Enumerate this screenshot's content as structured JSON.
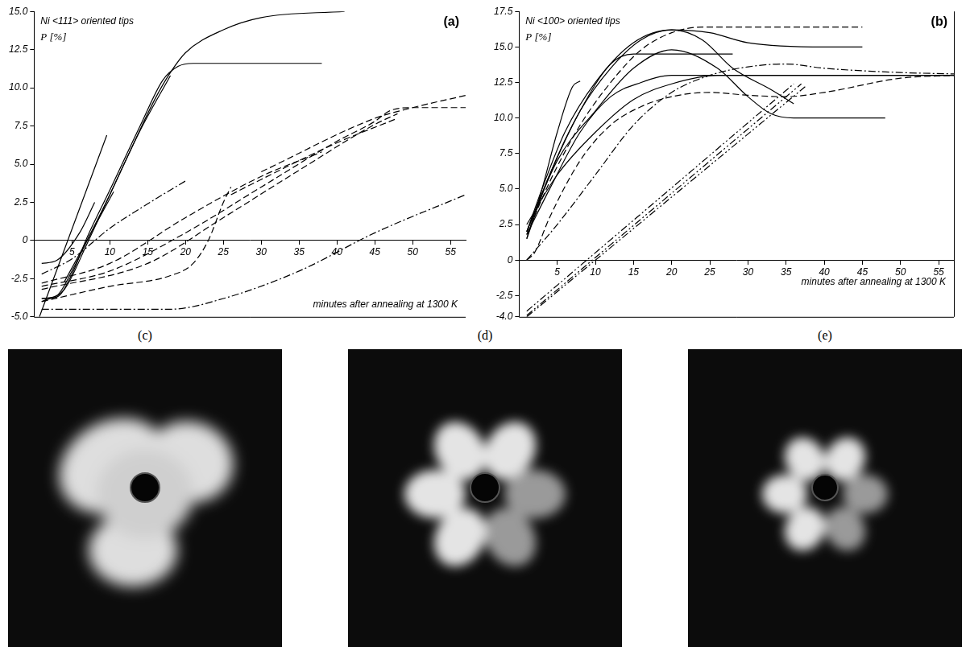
{
  "chart_data": [
    {
      "type": "line",
      "title": "Ni <111> oriented tips",
      "label": "(a)",
      "x_label": "minutes after annealing at 1300 K",
      "y_label": "P [%]",
      "xlim": [
        0,
        57
      ],
      "xticks": [
        5,
        10,
        15,
        20,
        25,
        30,
        35,
        40,
        45,
        50,
        55
      ],
      "ylim": [
        -5,
        15
      ],
      "yticks": [
        {
          "value": -5,
          "label": "-5.0"
        },
        -2.5,
        0,
        2.5,
        {
          "value": 5,
          "label": "5.0"
        },
        7.5,
        {
          "value": 10,
          "label": "10.0"
        },
        12.5,
        {
          "value": 15,
          "label": "15.0"
        }
      ],
      "grid": false,
      "series": [
        {
          "color": "#000000",
          "line_style": "solid",
          "values": [
            [
              1,
              -3.8
            ],
            [
              3,
              -3.6
            ],
            [
              5,
              -2
            ],
            [
              7,
              0
            ],
            [
              10,
              3
            ],
            [
              13,
              6.2
            ],
            [
              16,
              9.3
            ],
            [
              18,
              11
            ],
            [
              20,
              12.3
            ],
            [
              25,
              13.8
            ],
            [
              30,
              14.6
            ],
            [
              41,
              15
            ]
          ]
        },
        {
          "color": "#000000",
          "line_style": "solid",
          "values": [
            [
              1,
              -3.8
            ],
            [
              3,
              -3.7
            ],
            [
              5,
              -2.2
            ],
            [
              7,
              0.2
            ],
            [
              10,
              3.3
            ],
            [
              14,
              7.5
            ],
            [
              17,
              10.5
            ],
            [
              19,
              11.4
            ],
            [
              21,
              11.6
            ],
            [
              38,
              11.6
            ]
          ]
        },
        {
          "color": "#000000",
          "line_style": "solid",
          "values": [
            [
              1,
              -4
            ],
            [
              4,
              -3.2
            ],
            [
              7,
              -0.2
            ],
            [
              10,
              3
            ],
            [
              14,
              7.2
            ],
            [
              18,
              10.8
            ]
          ]
        },
        {
          "color": "#000000",
          "line_style": "solid",
          "values": [
            [
              0.7,
              -5
            ],
            [
              9.6,
              6.9
            ]
          ]
        },
        {
          "color": "#000000",
          "line_style": "solid",
          "values": [
            [
              4,
              -2.7
            ],
            [
              10.5,
              3.2
            ]
          ]
        },
        {
          "color": "#000000",
          "line_style": "solid",
          "values": [
            [
              1,
              -1.5
            ],
            [
              3,
              -1.3
            ],
            [
              6,
              0.5
            ],
            [
              8,
              2.5
            ]
          ]
        },
        {
          "color": "#000000",
          "line_style": "dashdot",
          "values": [
            [
              1,
              -2.2
            ],
            [
              5,
              -1.2
            ],
            [
              10,
              0.8
            ],
            [
              15,
              2.4
            ],
            [
              20,
              3.9
            ]
          ]
        },
        {
          "color": "#000000",
          "line_style": "dashed",
          "values": [
            [
              1,
              -2.8
            ],
            [
              10,
              -1.5
            ],
            [
              20,
              1.5
            ],
            [
              30,
              4.2
            ],
            [
              38,
              5.8
            ]
          ]
        },
        {
          "color": "#000000",
          "line_style": "dashed",
          "values": [
            [
              1,
              -3
            ],
            [
              10,
              -2
            ],
            [
              20,
              0.5
            ],
            [
              30,
              3.5
            ],
            [
              40,
              6.5
            ],
            [
              45,
              7.8
            ],
            [
              47,
              8.5
            ],
            [
              50,
              8.7
            ],
            [
              57,
              8.7
            ]
          ]
        },
        {
          "color": "#000000",
          "line_style": "dashed",
          "values": [
            [
              1,
              -3.2
            ],
            [
              15,
              -1.5
            ],
            [
              25,
              1.5
            ],
            [
              35,
              4.6
            ],
            [
              45,
              7.6
            ],
            [
              48,
              8.3
            ]
          ]
        },
        {
          "color": "#000000",
          "line_style": "dashed",
          "values": [
            [
              1,
              -4
            ],
            [
              10,
              -3
            ],
            [
              18,
              -2.3
            ],
            [
              21,
              -1.5
            ],
            [
              23,
              0
            ],
            [
              25,
              2.5
            ],
            [
              26,
              3.5
            ]
          ]
        },
        {
          "color": "#000000",
          "line_style": "dashed",
          "values": [
            [
              26,
              3
            ],
            [
              30,
              4
            ],
            [
              40,
              6.4
            ],
            [
              48,
              8
            ]
          ]
        },
        {
          "color": "#000000",
          "line_style": "dashed",
          "values": [
            [
              30,
              4.5
            ],
            [
              45,
              8
            ],
            [
              50,
              8.7
            ],
            [
              57,
              9.5
            ]
          ]
        },
        {
          "color": "#000000",
          "line_style": "dashdot",
          "values": [
            [
              1,
              -4.5
            ],
            [
              18,
              -4.5
            ],
            [
              25,
              -3.8
            ],
            [
              35,
              -2
            ],
            [
              45,
              0.5
            ],
            [
              57,
              3
            ]
          ]
        }
      ]
    },
    {
      "type": "line",
      "title": "Ni <100> oriented tips",
      "label": "(b)",
      "x_label": "minutes after annealing at 1300 K",
      "y_label": "P [%]",
      "xlim": [
        0,
        57
      ],
      "xticks": [
        5,
        10,
        15,
        20,
        25,
        30,
        35,
        40,
        45,
        50,
        55
      ],
      "ylim": [
        -4,
        17.5
      ],
      "yticks": [
        {
          "value": -4,
          "label": "-4.0"
        },
        -2.5,
        0,
        2.5,
        {
          "value": 5,
          "label": "5.0"
        },
        7.5,
        {
          "value": 10,
          "label": "10.0"
        },
        12.5,
        {
          "value": 15,
          "label": "15.0"
        },
        17.5
      ],
      "grid": false,
      "series": [
        {
          "color": "#000000",
          "line_style": "solid",
          "values": [
            [
              1,
              1.5
            ],
            [
              3,
              5
            ],
            [
              5,
              9
            ],
            [
              7,
              12.2
            ],
            [
              8,
              12.6
            ]
          ]
        },
        {
          "color": "#000000",
          "line_style": "solid",
          "values": [
            [
              1,
              2
            ],
            [
              3,
              5
            ],
            [
              6,
              9
            ],
            [
              10,
              12.5
            ],
            [
              15,
              15.3
            ],
            [
              20,
              16.2
            ],
            [
              24,
              15.5
            ],
            [
              28,
              13.5
            ],
            [
              33,
              12
            ],
            [
              36,
              11
            ]
          ]
        },
        {
          "color": "#000000",
          "line_style": "solid",
          "values": [
            [
              1,
              1.5
            ],
            [
              4,
              6
            ],
            [
              8,
              10.5
            ],
            [
              12,
              13.5
            ],
            [
              16,
              15.5
            ],
            [
              20,
              16.2
            ],
            [
              25,
              16
            ],
            [
              30,
              15.3
            ],
            [
              40,
              15
            ],
            [
              45,
              15
            ]
          ]
        },
        {
          "color": "#000000",
          "line_style": "solid",
          "values": [
            [
              1,
              2
            ],
            [
              5,
              7
            ],
            [
              10,
              10.5
            ],
            [
              15,
              13.5
            ],
            [
              20,
              14.8
            ],
            [
              26,
              13.5
            ],
            [
              30,
              11.5
            ],
            [
              33,
              10.3
            ],
            [
              36,
              10
            ],
            [
              48,
              10
            ]
          ]
        },
        {
          "color": "#000000",
          "line_style": "solid",
          "values": [
            [
              1,
              2
            ],
            [
              4,
              6
            ],
            [
              8,
              10.5
            ],
            [
              12,
              13.8
            ],
            [
              15,
              14.5
            ],
            [
              28,
              14.5
            ]
          ]
        },
        {
          "color": "#000000",
          "line_style": "solid",
          "values": [
            [
              1,
              1.8
            ],
            [
              4,
              5
            ],
            [
              8,
              9
            ],
            [
              12,
              11.5
            ],
            [
              16,
              12.5
            ],
            [
              20,
              13
            ],
            [
              30,
              13
            ],
            [
              57,
              13
            ]
          ]
        },
        {
          "color": "#000000",
          "line_style": "solid",
          "values": [
            [
              1,
              2.5
            ],
            [
              5,
              6
            ],
            [
              10,
              9
            ],
            [
              15,
              11.3
            ],
            [
              20,
              12.4
            ],
            [
              26,
              13
            ],
            [
              57,
              13
            ]
          ]
        },
        {
          "color": "#000000",
          "line_style": "dashed",
          "values": [
            [
              1,
              1.8
            ],
            [
              4,
              5.5
            ],
            [
              8,
              9.5
            ],
            [
              12,
              12.5
            ],
            [
              16,
              14.8
            ],
            [
              20,
              16
            ],
            [
              24,
              16.4
            ],
            [
              45,
              16.4
            ]
          ]
        },
        {
          "color": "#000000",
          "line_style": "dashdot",
          "values": [
            [
              1,
              0
            ],
            [
              5,
              2.5
            ],
            [
              10,
              6
            ],
            [
              15,
              9.5
            ],
            [
              20,
              11.8
            ],
            [
              25,
              13
            ],
            [
              30,
              13.6
            ],
            [
              35,
              13.8
            ],
            [
              40,
              13.5
            ],
            [
              50,
              13.2
            ],
            [
              57,
              13.1
            ]
          ]
        },
        {
          "color": "#000000",
          "line_style": "dashed",
          "values": [
            [
              1,
              0
            ],
            [
              2,
              0.5
            ],
            [
              4,
              3
            ],
            [
              8,
              7
            ],
            [
              12,
              9.5
            ],
            [
              16,
              10.8
            ],
            [
              20,
              11.5
            ],
            [
              25,
              11.8
            ],
            [
              30,
              11.6
            ],
            [
              35,
              11.5
            ],
            [
              40,
              11.8
            ],
            [
              50,
              12.8
            ],
            [
              57,
              13
            ]
          ]
        },
        {
          "color": "#000000",
          "line_style": "dashdotdot",
          "values": [
            [
              1,
              -3.6
            ],
            [
              36,
              12.4
            ]
          ]
        },
        {
          "color": "#000000",
          "line_style": "dashdotdot",
          "values": [
            [
              1,
              -3.9
            ],
            [
              37,
              12.4
            ]
          ]
        },
        {
          "color": "#000000",
          "line_style": "dashdotdot",
          "values": [
            [
              1,
              -4
            ],
            [
              37.5,
              12.2
            ]
          ]
        }
      ]
    }
  ],
  "images": [
    {
      "label": "(c)"
    },
    {
      "label": "(d)"
    },
    {
      "label": "(e)"
    }
  ]
}
